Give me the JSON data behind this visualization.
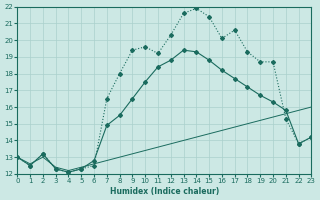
{
  "xlabel": "Humidex (Indice chaleur)",
  "xlim": [
    0,
    23
  ],
  "ylim": [
    12,
    22
  ],
  "xticks": [
    0,
    1,
    2,
    3,
    4,
    5,
    6,
    7,
    8,
    9,
    10,
    11,
    12,
    13,
    14,
    15,
    16,
    17,
    18,
    19,
    20,
    21,
    22,
    23
  ],
  "yticks": [
    12,
    13,
    14,
    15,
    16,
    17,
    18,
    19,
    20,
    21,
    22
  ],
  "bg_color": "#cce8e4",
  "grid_color": "#aad0cc",
  "line_color": "#1a6b5e",
  "line1_x": [
    0,
    1,
    2,
    3,
    4,
    5,
    6,
    7,
    8,
    9,
    10,
    11,
    12,
    13,
    14,
    15,
    16,
    17,
    18,
    19,
    20,
    21,
    22,
    23
  ],
  "line1_y": [
    13.0,
    12.5,
    13.2,
    12.3,
    12.1,
    12.3,
    12.5,
    16.5,
    18.0,
    19.4,
    19.6,
    19.2,
    20.3,
    21.6,
    21.9,
    21.4,
    20.1,
    20.6,
    19.3,
    18.7,
    18.7,
    15.3,
    13.8,
    14.2
  ],
  "line2_x": [
    0,
    1,
    2,
    3,
    4,
    5,
    6,
    7,
    8,
    9,
    10,
    11,
    12,
    13,
    14,
    15,
    16,
    17,
    18,
    19,
    20,
    21,
    22,
    23
  ],
  "line2_y": [
    13.0,
    12.5,
    13.2,
    12.3,
    12.1,
    12.3,
    12.8,
    14.9,
    15.5,
    16.5,
    17.5,
    18.4,
    18.8,
    19.4,
    19.3,
    18.8,
    18.2,
    17.7,
    17.2,
    16.7,
    16.3,
    15.8,
    13.8,
    14.2
  ],
  "line3_x": [
    0,
    1,
    2,
    3,
    4,
    5,
    6,
    7,
    8,
    9,
    10,
    11,
    12,
    13,
    14,
    15,
    16,
    17,
    18,
    19,
    20,
    21,
    22,
    23
  ],
  "line3_y": [
    13.0,
    12.6,
    13.0,
    12.4,
    12.2,
    12.4,
    12.6,
    12.8,
    13.0,
    13.2,
    13.4,
    13.6,
    13.8,
    14.0,
    14.2,
    14.4,
    14.6,
    14.8,
    15.0,
    15.2,
    15.4,
    15.6,
    15.8,
    16.0
  ]
}
